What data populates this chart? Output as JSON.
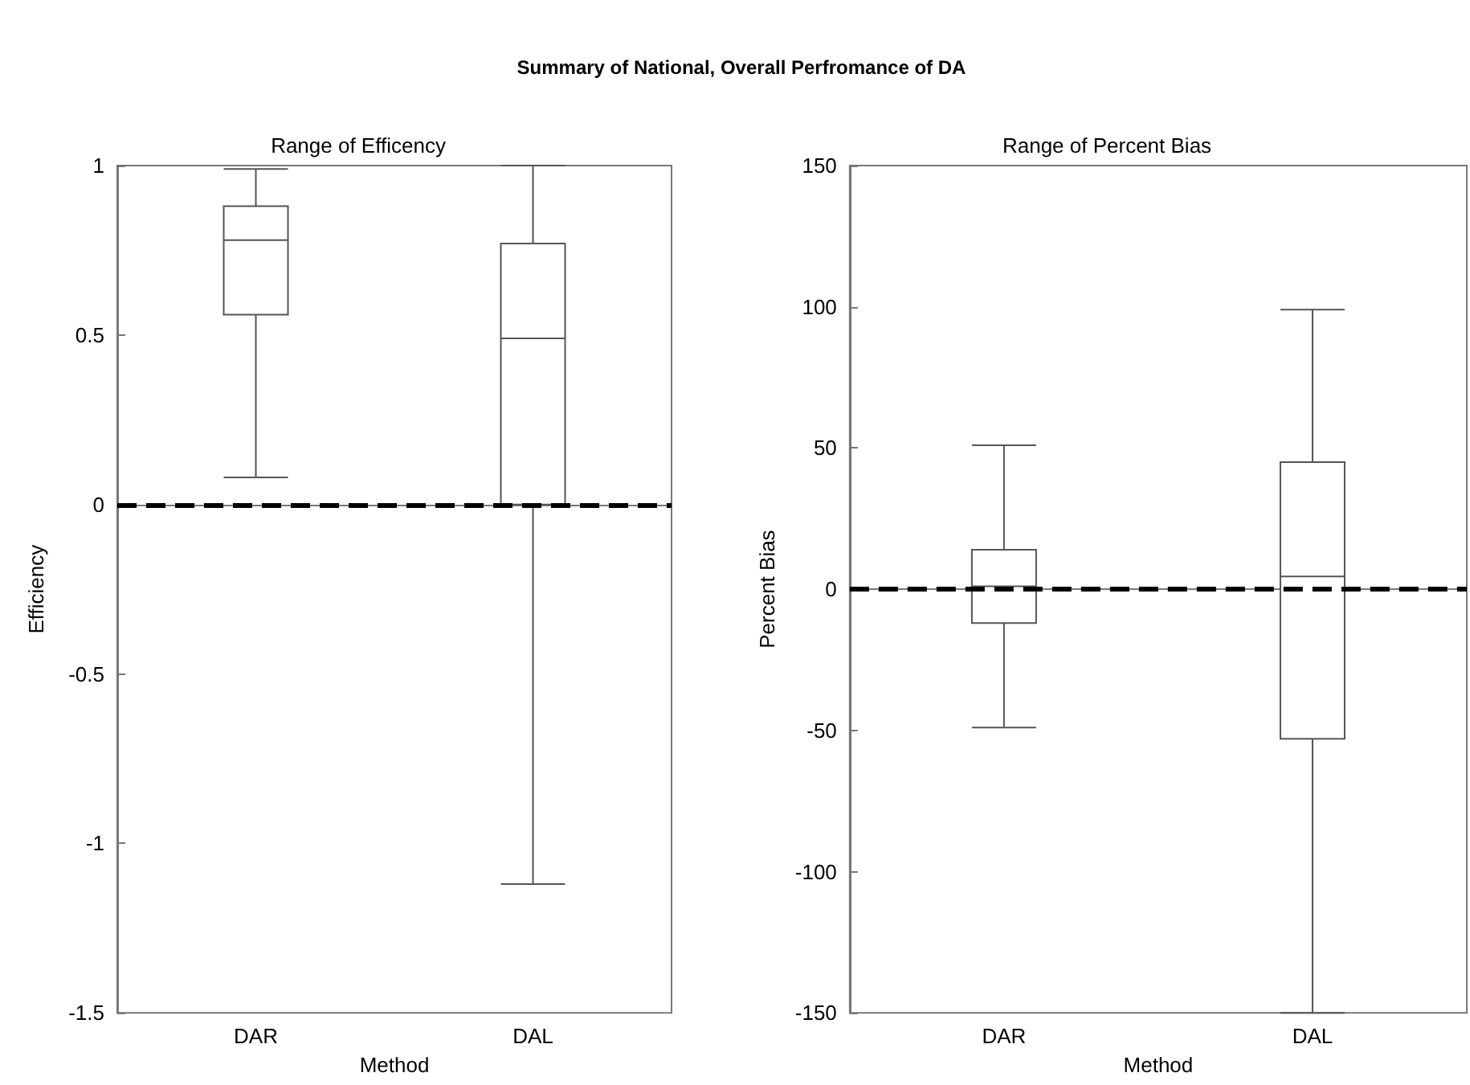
{
  "chart_data": [
    {
      "type": "box",
      "title": "Range of Efficency",
      "annotations": [
        "Summary of National, Overall Perfromance of DA"
      ],
      "xlabel": "Method",
      "ylabel": "Efficiency",
      "categories": [
        "DAR",
        "DAL"
      ],
      "series": [
        {
          "color": "#555555",
          "boxes": [
            {
              "low": 0.08,
              "q1": 0.56,
              "median": 0.78,
              "q3": 0.88,
              "high": 0.99
            },
            {
              "low": -1.12,
              "q1": 0,
              "median": 0.49,
              "q3": 0.77,
              "high": 1
            }
          ]
        }
      ],
      "ylim": [
        -1.5,
        1
      ],
      "yticks": [
        -1.5,
        -1,
        -0.5,
        0,
        0.5,
        1
      ],
      "ref_lines": [
        {
          "axis": "y",
          "value": 0,
          "color": "#000000",
          "line_style": "dashed"
        }
      ]
    },
    {
      "type": "box",
      "title": "Range of Percent Bias",
      "xlabel": "Method",
      "ylabel": "Percent Bias",
      "categories": [
        "DAR",
        "DAL"
      ],
      "series": [
        {
          "color": "#555555",
          "boxes": [
            {
              "low": -49,
              "q1": -12,
              "median": 1,
              "q3": 14,
              "high": 51
            },
            {
              "low": -150,
              "q1": -53,
              "median": 4.5,
              "q3": 45,
              "high": 99
            }
          ]
        }
      ],
      "ylim": [
        -150,
        150
      ],
      "yticks": [
        -150,
        -100,
        -50,
        0,
        50,
        100,
        150
      ],
      "ref_lines": [
        {
          "axis": "y",
          "value": 0,
          "color": "#000000",
          "line_style": "dashed"
        }
      ]
    }
  ]
}
